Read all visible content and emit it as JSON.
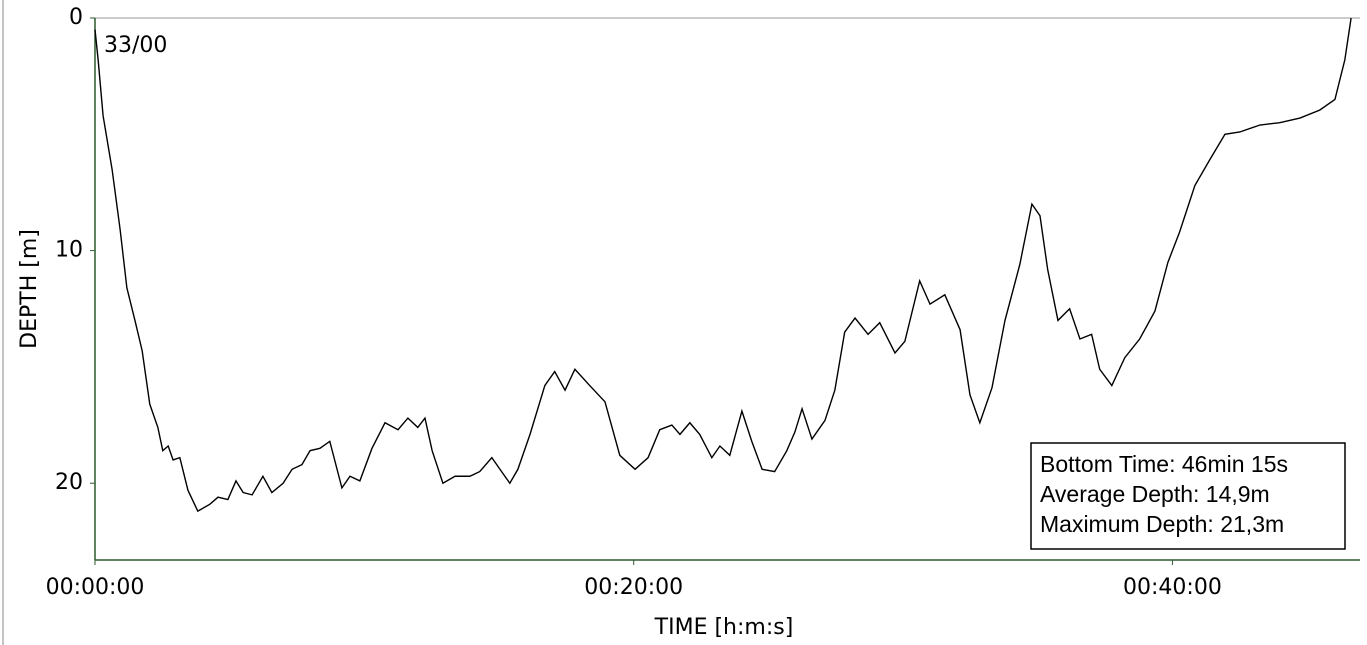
{
  "chart_data": {
    "type": "line",
    "x_label": "TIME [h:m:s]",
    "y_label": "DEPTH [m]",
    "annotation": "33/00",
    "info_box": [
      "Bottom Time: 46min 15s",
      "Average Depth: 14,9m",
      "Maximum Depth: 21,3m"
    ],
    "y_inverted": true,
    "xlim": [
      0,
      2800
    ],
    "ylim": [
      0,
      23.3
    ],
    "xticks": [
      {
        "value": 0,
        "label": "00:00:00"
      },
      {
        "value": 1200,
        "label": "00:20:00"
      },
      {
        "value": 2400,
        "label": "00:40:00"
      }
    ],
    "yticks": [
      0,
      10,
      20
    ],
    "series": [
      {
        "color": "#000000",
        "x": [
          0,
          7,
          18,
          38,
          56,
          71,
          89,
          105,
          122,
          140,
          151,
          163,
          174,
          189,
          207,
          229,
          256,
          274,
          296,
          314,
          330,
          350,
          374,
          394,
          419,
          439,
          461,
          479,
          501,
          523,
          550,
          568,
          590,
          617,
          646,
          675,
          697,
          719,
          735,
          751,
          775,
          802,
          835,
          857,
          884,
          902,
          924,
          942,
          969,
          1002,
          1024,
          1047,
          1069,
          1102,
          1136,
          1169,
          1203,
          1232,
          1258,
          1285,
          1303,
          1325,
          1347,
          1374,
          1392,
          1414,
          1441,
          1463,
          1486,
          1514,
          1541,
          1559,
          1575,
          1597,
          1626,
          1648,
          1670,
          1693,
          1722,
          1748,
          1782,
          1804,
          1837,
          1860,
          1893,
          1927,
          1949,
          1971,
          1998,
          2027,
          2060,
          2087,
          2105,
          2122,
          2145,
          2171,
          2194,
          2220,
          2238,
          2265,
          2294,
          2327,
          2361,
          2390,
          2416,
          2450,
          2483,
          2517,
          2550,
          2595,
          2639,
          2684,
          2728,
          2762,
          2784,
          2798
        ],
        "values": [
          0.5,
          1.8,
          4.2,
          6.5,
          9.1,
          11.6,
          13.0,
          14.3,
          16.6,
          17.6,
          18.6,
          18.4,
          19.0,
          18.9,
          20.3,
          21.2,
          20.9,
          20.6,
          20.7,
          19.9,
          20.4,
          20.5,
          19.7,
          20.4,
          20.0,
          19.4,
          19.2,
          18.6,
          18.5,
          18.2,
          20.2,
          19.7,
          19.9,
          18.5,
          17.4,
          17.7,
          17.2,
          17.6,
          17.2,
          18.6,
          20.0,
          19.7,
          19.7,
          19.5,
          18.9,
          19.4,
          20.0,
          19.4,
          17.9,
          15.8,
          15.2,
          16.0,
          15.1,
          15.8,
          16.5,
          18.8,
          19.4,
          18.9,
          17.7,
          17.5,
          17.9,
          17.4,
          17.9,
          18.9,
          18.4,
          18.8,
          16.9,
          18.2,
          19.4,
          19.5,
          18.6,
          17.8,
          16.8,
          18.1,
          17.3,
          16.0,
          13.5,
          12.9,
          13.6,
          13.1,
          14.4,
          13.9,
          11.3,
          12.3,
          11.9,
          13.4,
          16.2,
          17.4,
          15.9,
          13.0,
          10.6,
          8.0,
          8.5,
          10.8,
          13.0,
          12.5,
          13.8,
          13.6,
          15.1,
          15.8,
          14.6,
          13.8,
          12.6,
          10.5,
          9.2,
          7.2,
          6.1,
          5.0,
          4.9,
          4.6,
          4.5,
          4.3,
          3.96,
          3.5,
          1.8,
          0
        ]
      }
    ]
  }
}
